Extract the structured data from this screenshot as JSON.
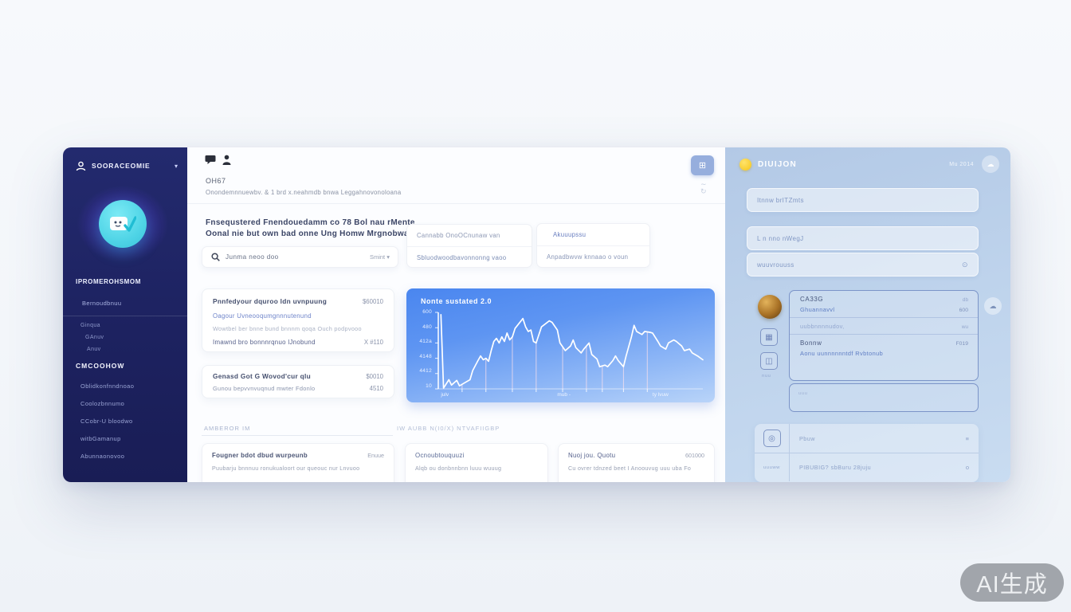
{
  "watermark": "AI生成",
  "sidebar": {
    "brand": "SOORACEOMIE",
    "section_primary": "IPROMEROHSMOM",
    "primary_item": "Bernoudbnuu",
    "sub_items": [
      "Ginqua",
      "GAnuv",
      "Anuv"
    ],
    "section_secondary": "CMCOOHOW",
    "items": [
      "Oblidkonfnndnoao",
      "Coolozbnnumo",
      "CCobr-U bloodwo",
      "witbGamanup",
      "Abunnaonovoo"
    ]
  },
  "main": {
    "header": {
      "title": "OH67",
      "subtitle": "Onondemnnuewbv. & 1 brd x.neahmdb bnwa Leggahnovonoloana"
    },
    "hero": {
      "heading_line1": "Fnsequstered Fnendouedamm co 78 Bol nau rMente",
      "heading_line2": "Oonal nie but own bad onne Ung Homw Mrgnobwato",
      "search_text": "Junma neoo doo",
      "search_action": "Smint",
      "search_caret": "▾",
      "panel_a_row1": "Cannabb OnoOCnunaw van",
      "panel_a_row2": "Sbluodwoodbavonnonng vaoo",
      "panel_b_row1": "Akuuupssu",
      "panel_b_row2": "Anpadbwvw knnaao o voun"
    },
    "card_a": {
      "title": "Pnnfedyour dquroo ldn uvnpuung",
      "value": "$60010",
      "link": "Oagour Uvneooqumgnnnutenund",
      "note": "Wowtbel ber bnne bund bnnnm qoqa Ouch podpvooo",
      "row2_text": "Imawnd bro bonnnrqnuo lJnobund",
      "row2_value": "X #110"
    },
    "card_b": {
      "title": "Genasd Got G Wovod'cur qlu",
      "value": "$0010",
      "sub": "Gunou bepvvnvuqnud mwter Fdonlo",
      "sub_value": "4510"
    },
    "section_labels": {
      "left": "AMBEROR IM",
      "right": "IW AUBB N(I0/X) NTVAFIIGBP"
    },
    "bottom_cards": [
      {
        "title": "Fougner bdot dbud wurpeunb",
        "value": "Enuue",
        "sub": "Puubarju bnnnuu ronukualoort our queouc nur Lnvuoo"
      },
      {
        "title": "Ocnoubtouquuzi",
        "value": "",
        "sub": "Alqb ou donbnnbnn luuu wuuug"
      },
      {
        "title": "Nuoj jou. Quotu",
        "value": "601000",
        "sub": "Cu ovrer tdnzed beet I Anoouvug uuu uba Fo"
      }
    ]
  },
  "chart_data": {
    "type": "line",
    "title": "Nonte sustated 2.0",
    "y_ticks": [
      "600",
      "480",
      "412a",
      "4148",
      "4412",
      "10"
    ],
    "x_ticks": [
      {
        "label": "julv",
        "x": 1
      },
      {
        "label": "mub -",
        "x": 45
      },
      {
        "label": "ty lvuw",
        "x": 81
      }
    ],
    "guides": [
      9,
      18,
      28,
      37,
      47,
      56,
      62,
      70,
      79
    ],
    "points": [
      [
        1,
        3
      ],
      [
        2,
        99
      ],
      [
        4,
        88
      ],
      [
        5,
        95
      ],
      [
        7,
        89
      ],
      [
        8,
        96
      ],
      [
        10,
        92
      ],
      [
        12,
        88
      ],
      [
        13,
        76
      ],
      [
        15,
        63
      ],
      [
        16,
        57
      ],
      [
        17,
        62
      ],
      [
        18,
        60
      ],
      [
        19,
        64
      ],
      [
        20,
        50
      ],
      [
        21,
        38
      ],
      [
        22,
        34
      ],
      [
        23,
        40
      ],
      [
        24,
        32
      ],
      [
        25,
        38
      ],
      [
        26,
        27
      ],
      [
        27,
        36
      ],
      [
        28,
        32
      ],
      [
        29,
        21
      ],
      [
        32,
        8
      ],
      [
        33,
        19
      ],
      [
        34,
        25
      ],
      [
        35,
        23
      ],
      [
        36,
        38
      ],
      [
        37,
        40
      ],
      [
        39,
        19
      ],
      [
        42,
        11
      ],
      [
        43,
        13
      ],
      [
        45,
        23
      ],
      [
        46,
        40
      ],
      [
        48,
        50
      ],
      [
        50,
        44
      ],
      [
        51,
        36
      ],
      [
        52,
        46
      ],
      [
        54,
        53
      ],
      [
        55,
        48
      ],
      [
        57,
        40
      ],
      [
        58,
        55
      ],
      [
        60,
        61
      ],
      [
        61,
        71
      ],
      [
        63,
        69
      ],
      [
        64,
        71
      ],
      [
        66,
        63
      ],
      [
        67,
        57
      ],
      [
        68,
        63
      ],
      [
        70,
        71
      ],
      [
        71,
        57
      ],
      [
        73,
        32
      ],
      [
        74,
        17
      ],
      [
        75,
        25
      ],
      [
        77,
        29
      ],
      [
        78,
        25
      ],
      [
        80,
        26
      ],
      [
        81,
        27
      ],
      [
        83,
        38
      ],
      [
        84,
        44
      ],
      [
        86,
        48
      ],
      [
        87,
        40
      ],
      [
        89,
        36
      ],
      [
        90,
        38
      ],
      [
        92,
        44
      ],
      [
        93,
        50
      ],
      [
        95,
        48
      ],
      [
        96,
        53
      ],
      [
        98,
        57
      ],
      [
        100,
        62
      ]
    ],
    "line_color": "#ffffff"
  },
  "right_panel": {
    "title": "DIUIJON",
    "meta": "Mu 2014",
    "inputs": [
      "Itnnw brITZmts",
      "L n nno nWegJ",
      "wuuvrouuss"
    ],
    "list": {
      "row1_title": "CA33G",
      "row1_meta": "db",
      "row1_link": "Ghuannavvl",
      "row1_value": "600",
      "row2_text": "uubbnnnnudov,",
      "row2_meta": "wu",
      "row3_title": "Bonnw",
      "row3_value": "F019",
      "row3_link": "Aonu uunnnnnntdf Rvbtonub",
      "icon_label": "nuu",
      "note_label": "uuu"
    },
    "bottom": {
      "row1_text": "Pbuw",
      "row1_meta": "≡",
      "row2_label": "uuuww",
      "row2_text": "PIBUBIG? sbBuru 28juju",
      "row2_meta": "o"
    }
  }
}
